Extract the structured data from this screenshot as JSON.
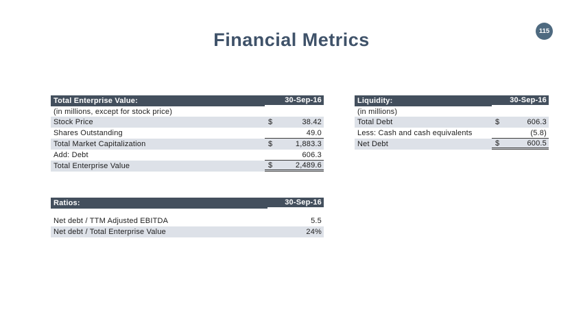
{
  "slide": {
    "title": "Financial Metrics",
    "page_number": "115"
  },
  "colors": {
    "header_bg": "#434F5D",
    "row_band": "#DDE1E8",
    "title_text": "#3F5269",
    "badge_bg": "#4E6A80",
    "rule": "#3a3a3a",
    "body_text": "#1c1c1c",
    "header_text": "#ffffff"
  },
  "tables": [
    {
      "id": "total-enterprise-value",
      "header": {
        "label": "Total Enterprise Value:",
        "date": "30-Sep-16"
      },
      "note": "(in millions, except for stock price)",
      "spacer": false,
      "rows": [
        {
          "label": "Stock Price",
          "dollar": "$",
          "value": "38.42",
          "shaded": true,
          "rule": ""
        },
        {
          "label": "Shares Outstanding",
          "dollar": "",
          "value": "49.0",
          "shaded": false,
          "rule": "single"
        },
        {
          "label": "Total Market Capitalization",
          "dollar": "$",
          "value": "1,883.3",
          "shaded": true,
          "rule": ""
        },
        {
          "label": "Add: Debt",
          "dollar": "",
          "value": "606.3",
          "shaded": false,
          "rule": "single"
        },
        {
          "label": "Total Enterprise Value",
          "dollar": "$",
          "value": "2,489.6",
          "shaded": true,
          "rule": "double"
        }
      ]
    },
    {
      "id": "liquidity",
      "header": {
        "label": "Liquidity:",
        "date": "30-Sep-16"
      },
      "note": "(in millions)",
      "spacer": false,
      "rows": [
        {
          "label": "Total Debt",
          "dollar": "$",
          "value": "606.3",
          "shaded": true,
          "rule": ""
        },
        {
          "label": "Less: Cash and cash equivalents",
          "dollar": "",
          "value": "(5.8)",
          "shaded": false,
          "rule": "single"
        },
        {
          "label": "Net Debt",
          "dollar": "$",
          "value": "600.5",
          "shaded": true,
          "rule": "double"
        }
      ]
    },
    {
      "id": "ratios",
      "header": {
        "label": "Ratios:",
        "date": "30-Sep-16"
      },
      "note": null,
      "spacer": true,
      "rows": [
        {
          "label": "Net debt / TTM Adjusted EBITDA",
          "dollar": "",
          "value": "5.5",
          "shaded": false,
          "rule": ""
        },
        {
          "label": "Net debt / Total Enterprise Value",
          "dollar": "",
          "value": "24%",
          "shaded": true,
          "rule": ""
        }
      ]
    }
  ]
}
